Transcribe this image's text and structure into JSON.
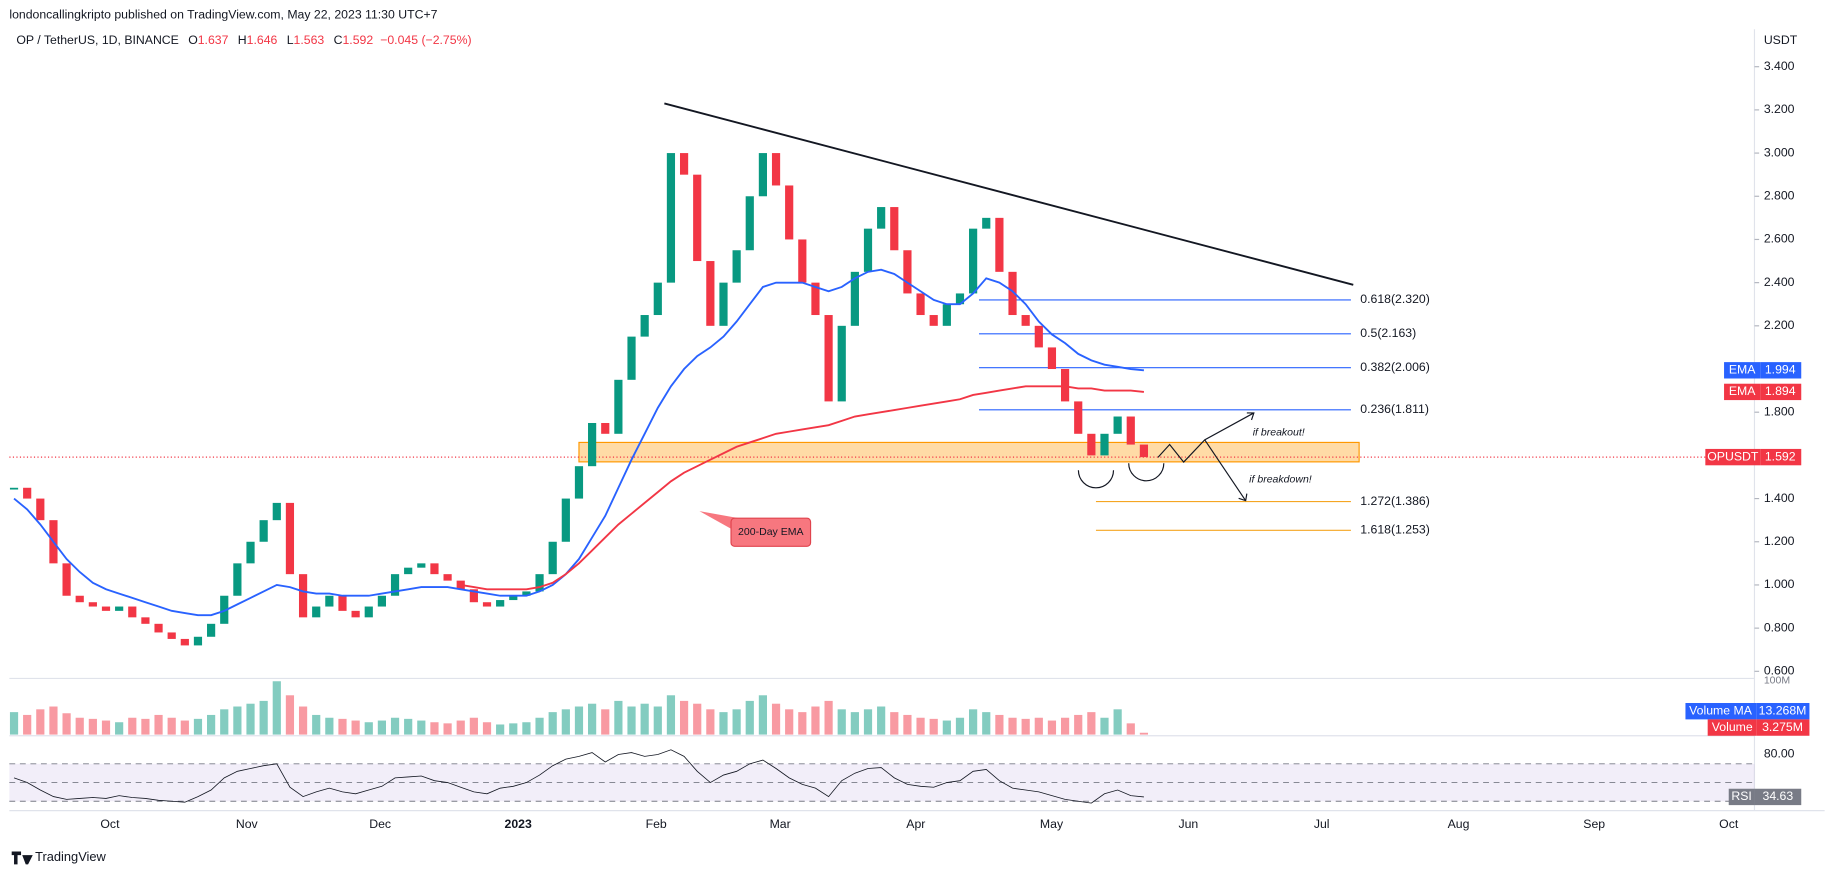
{
  "header": {
    "publisher": "londoncallingkripto published on TradingView.com, May 22, 2023 11:30 UTC+7",
    "footer": "TradingView"
  },
  "chart_data": {
    "type": "candlestick",
    "title": "OP / TetherUS, 1D, BINANCE",
    "currency": "USDT",
    "ohlc": [
      {
        "label": "O",
        "value": 1.637
      },
      {
        "label": "H",
        "value": 1.646
      },
      {
        "label": "L",
        "value": 1.563
      }
    ],
    "close_label": "C",
    "change": "−0.045 (−2.75%)",
    "symbol": "OPUSDT",
    "up_color": "#089981",
    "down_color": "#f23645",
    "x_labels": [
      "Oct",
      "Nov",
      "Dec",
      "2023",
      "Feb",
      "Mar",
      "Apr",
      "May",
      "Jun",
      "Jul",
      "Aug",
      "Sep",
      "Oct"
    ],
    "ylim": [
      0.567,
      3.557
    ],
    "yticks": [
      {
        "value": 0.6,
        "label": "0.600"
      },
      {
        "value": 0.8,
        "label": "0.800"
      },
      {
        "value": 1.0,
        "label": "1.000"
      },
      {
        "value": 1.2,
        "label": "1.200"
      },
      {
        "value": 1.4,
        "label": "1.400"
      },
      {
        "value": 1.8,
        "label": "1.800"
      },
      {
        "value": 2.2,
        "label": "2.200"
      },
      {
        "value": 2.4,
        "label": "2.400"
      },
      {
        "value": 2.6,
        "label": "2.600"
      },
      {
        "value": 2.8,
        "label": "2.800"
      },
      {
        "value": 3.0,
        "label": "3.000"
      },
      {
        "value": 3.2,
        "label": "3.200"
      },
      {
        "value": 3.4,
        "label": "3.400"
      }
    ],
    "grid": false,
    "close": [
      1.45,
      1.4,
      1.3,
      1.1,
      0.95,
      0.92,
      0.9,
      0.88,
      0.9,
      0.85,
      0.82,
      0.78,
      0.75,
      0.72,
      0.76,
      0.82,
      0.95,
      1.1,
      1.2,
      1.3,
      1.38,
      1.05,
      0.85,
      0.9,
      0.95,
      0.88,
      0.85,
      0.9,
      0.95,
      1.05,
      1.08,
      1.1,
      1.05,
      1.02,
      0.98,
      0.92,
      0.9,
      0.93,
      0.95,
      0.97,
      1.05,
      1.2,
      1.4,
      1.55,
      1.75,
      1.7,
      1.95,
      2.15,
      2.25,
      2.4,
      3.0,
      2.9,
      2.5,
      2.2,
      2.4,
      2.55,
      2.8,
      3.0,
      2.85,
      2.6,
      2.4,
      2.25,
      1.85,
      2.2,
      2.45,
      2.65,
      2.75,
      2.55,
      2.35,
      2.25,
      2.2,
      2.3,
      2.35,
      2.65,
      2.7,
      2.45,
      2.25,
      2.2,
      2.1,
      2.0,
      1.85,
      1.7,
      1.6,
      1.7,
      1.78,
      1.65,
      1.592
    ],
    "series": [
      {
        "name": "EMA",
        "color": "#2962ff",
        "values": [
          1.4,
          1.35,
          1.28,
          1.2,
          1.12,
          1.06,
          1.01,
          0.98,
          0.96,
          0.94,
          0.92,
          0.9,
          0.88,
          0.87,
          0.86,
          0.86,
          0.88,
          0.91,
          0.94,
          0.97,
          1.0,
          0.99,
          0.97,
          0.96,
          0.96,
          0.95,
          0.95,
          0.95,
          0.96,
          0.97,
          0.98,
          0.99,
          0.99,
          0.99,
          0.98,
          0.97,
          0.96,
          0.95,
          0.95,
          0.95,
          0.97,
          1.0,
          1.05,
          1.12,
          1.22,
          1.32,
          1.45,
          1.58,
          1.7,
          1.82,
          1.92,
          2.0,
          2.06,
          2.1,
          2.15,
          2.22,
          2.3,
          2.38,
          2.4,
          2.4,
          2.4,
          2.38,
          2.36,
          2.38,
          2.42,
          2.45,
          2.46,
          2.44,
          2.4,
          2.36,
          2.32,
          2.3,
          2.3,
          2.35,
          2.42,
          2.4,
          2.36,
          2.3,
          2.22,
          2.16,
          2.12,
          2.07,
          2.04,
          2.02,
          2.01,
          2.0,
          1.994
        ]
      },
      {
        "name": "EMA",
        "color": "#f23645",
        "values": [
          null,
          null,
          null,
          null,
          null,
          null,
          null,
          null,
          null,
          null,
          null,
          null,
          null,
          null,
          null,
          null,
          null,
          null,
          null,
          null,
          null,
          null,
          null,
          null,
          null,
          null,
          null,
          null,
          null,
          null,
          null,
          null,
          null,
          null,
          1.0,
          0.99,
          0.98,
          0.98,
          0.98,
          0.98,
          0.99,
          1.01,
          1.05,
          1.1,
          1.16,
          1.22,
          1.28,
          1.33,
          1.38,
          1.43,
          1.48,
          1.52,
          1.55,
          1.58,
          1.61,
          1.64,
          1.66,
          1.68,
          1.7,
          1.71,
          1.72,
          1.73,
          1.74,
          1.76,
          1.78,
          1.79,
          1.8,
          1.81,
          1.82,
          1.83,
          1.84,
          1.85,
          1.86,
          1.88,
          1.89,
          1.9,
          1.91,
          1.92,
          1.92,
          1.92,
          1.92,
          1.91,
          1.91,
          1.9,
          1.9,
          1.9,
          1.894
        ]
      }
    ],
    "fib_levels": [
      {
        "label": "0.618(2.320)",
        "value": 2.32,
        "color": "#2962ff"
      },
      {
        "label": "0.5(2.163)",
        "value": 2.163,
        "color": "#2962ff"
      },
      {
        "label": "0.382(2.006)",
        "value": 2.006,
        "color": "#2962ff"
      },
      {
        "label": "0.236(1.811)",
        "value": 1.811,
        "color": "#2962ff"
      },
      {
        "label": "1.272(1.386)",
        "value": 1.386,
        "color": "#f5a623"
      },
      {
        "label": "1.618(1.253)",
        "value": 1.253,
        "color": "#f5a623"
      }
    ],
    "zone": [
      1.57,
      1.66
    ],
    "trendline": [
      3.23,
      2.39
    ],
    "annotations": {
      "breakout": "if breakout!",
      "breakdown": "if breakdown!",
      "ema200": "200-Day EMA"
    },
    "volume": {
      "ma_name": "Volume MA",
      "ma_label": "13.268M",
      "name": "Volume",
      "last_label": "3.275M",
      "ylim": [
        0,
        {
          "value": 100,
          "label": "100M"
        }
      ],
      "values": [
        40,
        35,
        45,
        50,
        38,
        30,
        28,
        25,
        22,
        30,
        28,
        35,
        30,
        25,
        28,
        35,
        45,
        50,
        55,
        60,
        95,
        70,
        50,
        35,
        30,
        28,
        25,
        22,
        25,
        30,
        28,
        25,
        22,
        20,
        25,
        30,
        22,
        18,
        20,
        22,
        30,
        40,
        45,
        50,
        55,
        45,
        60,
        50,
        55,
        50,
        70,
        60,
        55,
        45,
        40,
        45,
        60,
        70,
        55,
        45,
        40,
        50,
        60,
        45,
        40,
        45,
        50,
        40,
        35,
        30,
        28,
        25,
        30,
        45,
        40,
        35,
        30,
        28,
        30,
        25,
        30,
        35,
        40,
        30,
        45,
        20,
        3.275
      ]
    },
    "rsi": {
      "name": "RSI",
      "color": "#7e57c2",
      "ylim": [
        20,
        100
      ],
      "yticks": [
        {
          "value": 80,
          "label": "80.00"
        }
      ],
      "bands": [
        70,
        50,
        30
      ],
      "values": [
        55,
        50,
        42,
        35,
        32,
        33,
        34,
        33,
        36,
        34,
        33,
        31,
        30,
        29,
        35,
        42,
        55,
        62,
        65,
        68,
        70,
        45,
        35,
        40,
        44,
        40,
        38,
        42,
        46,
        55,
        56,
        57,
        52,
        50,
        45,
        40,
        38,
        44,
        46,
        50,
        58,
        68,
        75,
        78,
        82,
        72,
        80,
        82,
        78,
        80,
        85,
        78,
        62,
        50,
        58,
        62,
        70,
        74,
        65,
        55,
        48,
        44,
        35,
        52,
        60,
        65,
        66,
        55,
        48,
        46,
        45,
        50,
        52,
        62,
        64,
        52,
        44,
        42,
        40,
        36,
        32,
        30,
        28,
        38,
        42,
        36,
        34.63
      ]
    }
  }
}
